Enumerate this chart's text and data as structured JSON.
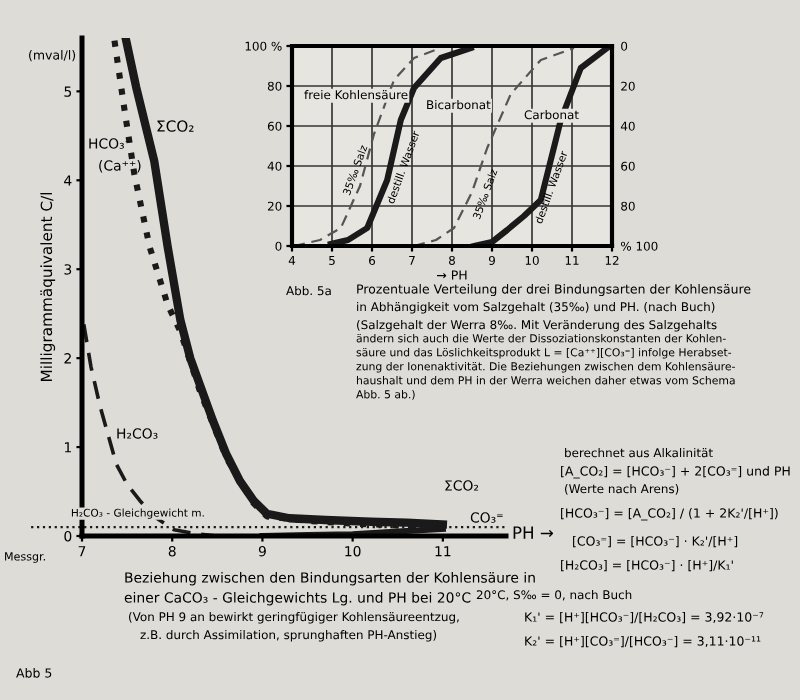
{
  "chart_data": [
    {
      "type": "line",
      "xlabel": "PH →",
      "ylabel": "Milligrammäquivalent C/l",
      "xlim": [
        7,
        11.7
      ],
      "xticks": [
        7,
        8,
        9,
        10,
        11
      ],
      "ylim": [
        0,
        5.6
      ],
      "yticks": [
        0,
        1,
        2,
        3,
        4,
        5
      ],
      "grid": false,
      "legend": false,
      "marker": "none",
      "series": [
        {
          "color": "#1a1a1a",
          "line_style": "solid",
          "x": [
            7.49,
            7.6,
            7.8,
            7.95,
            8.09,
            8.2,
            8.31,
            8.45,
            8.6,
            8.75,
            8.9,
            9.05,
            9.3,
            9.7,
            10.2,
            10.6,
            11.0
          ],
          "values": [
            5.57,
            5.05,
            4.22,
            3.25,
            2.43,
            2.0,
            1.69,
            1.3,
            0.92,
            0.62,
            0.4,
            0.25,
            0.2,
            0.18,
            0.16,
            0.15,
            0.13
          ]
        },
        {
          "color": "#1a1a1a",
          "line_style": "dotted",
          "x": [
            7.36,
            7.47,
            7.58,
            7.75,
            7.95,
            8.09,
            8.31,
            8.6,
            8.9,
            9.05,
            9.5,
            10.0,
            10.5,
            10.8
          ],
          "values": [
            5.57,
            4.8,
            4.07,
            3.25,
            2.6,
            2.3,
            1.62,
            0.88,
            0.37,
            0.22,
            0.17,
            0.14,
            0.12,
            0.1
          ]
        },
        {
          "color": "#1a1a1a",
          "line_style": "dashed",
          "x": [
            7.02,
            7.1,
            7.2,
            7.3,
            7.38,
            7.5,
            7.64,
            7.8,
            8.02,
            8.3,
            8.5
          ],
          "values": [
            2.38,
            1.9,
            1.46,
            1.1,
            0.81,
            0.58,
            0.4,
            0.22,
            0.07,
            0.02,
            0.0
          ]
        },
        {
          "color": "#1a1a1a",
          "line_style": "solid",
          "x": [
            9.0,
            9.5,
            10.0,
            10.5,
            11.0
          ],
          "values": [
            0.0,
            0.01,
            0.02,
            0.05,
            0.08
          ]
        }
      ],
      "ref_lines": [
        {
          "axis": "y",
          "value": 0.1,
          "label": "H₂CO₃ - Gleichgewicht m.",
          "line_style": "dotted"
        }
      ],
      "annotations": [
        "ΣCO₂",
        "HCO₃⁻",
        "(Ca⁺⁺)",
        "H₂CO₃",
        "ΣCO₂",
        "CO₃⁼",
        "(mval/l)",
        "Messgr.",
        "Beziehung zwischen den Bindungsarten der Kohlensäure in",
        "einer CaCO₃ - Gleichgewichts Lg. und PH bei 20°C",
        "(Von PH 9 an bewirkt geringfügiger Kohlensäureentzug,",
        "z.B. durch Assimilation, sprunghaften PH-Anstieg)",
        "Abb 5",
        "berechnet aus Alkalinität",
        "[A_CO₂] = [HCO₃⁻] + 2[CO₃⁼] und PH",
        "(Werte nach Arens)",
        "[HCO₃⁻] = [A_CO₂] / (1 + 2K₂'/[H⁺])",
        "[CO₃⁼] = [HCO₃⁻] · K₂'/[H⁺]",
        "[H₂CO₃] = [HCO₃⁻] · [H⁺]/K₁'",
        "20°C, S‰ = 0, nach Buch",
        "K₁' = [H⁺][HCO₃⁻]/[H₂CO₃] = 3,92·10⁻⁷",
        "K₂' = [H⁺][CO₃⁼]/[HCO₃⁻] = 3,11·10⁻¹¹"
      ]
    },
    {
      "type": "line",
      "xlabel": "→ PH",
      "xlim": [
        4,
        12
      ],
      "xticks": [
        4,
        5,
        6,
        7,
        8,
        9,
        10,
        11,
        12
      ],
      "ylim": [
        0,
        100
      ],
      "yticks": [
        0,
        20,
        40,
        60,
        80,
        {
          "value": 100,
          "label": "100 %"
        }
      ],
      "y2lim": [
        100,
        0
      ],
      "y2ticks": [
        0,
        20,
        40,
        60,
        80,
        {
          "value": 100,
          "label": "% 100"
        }
      ],
      "grid": true,
      "legend": false,
      "marker": "none",
      "series": [
        {
          "color": "#1a1a1a",
          "line_style": "solid",
          "x": [
            4.97,
            5.4,
            5.88,
            6.38,
            6.72,
            7.05,
            7.72,
            8.47
          ],
          "values": [
            1,
            3,
            9,
            33,
            63,
            79,
            94,
            99
          ]
        },
        {
          "color": "#555555",
          "line_style": "dashed",
          "x": [
            4.05,
            4.7,
            5.22,
            5.7,
            6.05,
            6.55,
            7.05,
            7.72
          ],
          "values": [
            0,
            3,
            9,
            30,
            56,
            83,
            94,
            99
          ]
        },
        {
          "color": "#1a1a1a",
          "line_style": "solid",
          "x": [
            8.55,
            9.0,
            9.38,
            9.8,
            10.22,
            10.72,
            11.22,
            11.88
          ],
          "values": [
            0,
            2,
            8,
            15,
            23,
            63,
            89,
            99
          ]
        },
        {
          "color": "#555555",
          "line_style": "dashed",
          "x": [
            7.05,
            7.6,
            8.05,
            8.5,
            8.88,
            9.47,
            10.22,
            11.05
          ],
          "values": [
            0,
            3,
            9,
            27,
            49,
            76,
            93,
            99
          ]
        }
      ],
      "annotations": [
        "35‰ Salz",
        "destill. Wasser",
        "35‰ Salz",
        "destill. Wasser",
        "freie Kohlensäure",
        "Bicarbonat",
        "Carbonat",
        "Abb. 5a",
        "Prozentuale Verteilung der drei Bindungsarten der Kohlensäure",
        "in Abhängigkeit vom Salzgehalt (35‰) und PH. (nach Buch)",
        "(Salzgehalt der Werra 8‰. Mit Veränderung des Salzgehalts",
        "ändern sich auch die Werte der Dissoziationskonstanten der Kohlen-",
        "säure und das Löslichkeitsprodukt L = [Ca⁺⁺][CO₃⁼] infolge Herabset-",
        "zung der Ionenaktivität. Die Beziehungen zwischen dem Kohlensäure-",
        "haushalt und dem PH in der Werra weichen daher etwas vom Schema",
        "Abb. 5 ab.)"
      ]
    }
  ]
}
